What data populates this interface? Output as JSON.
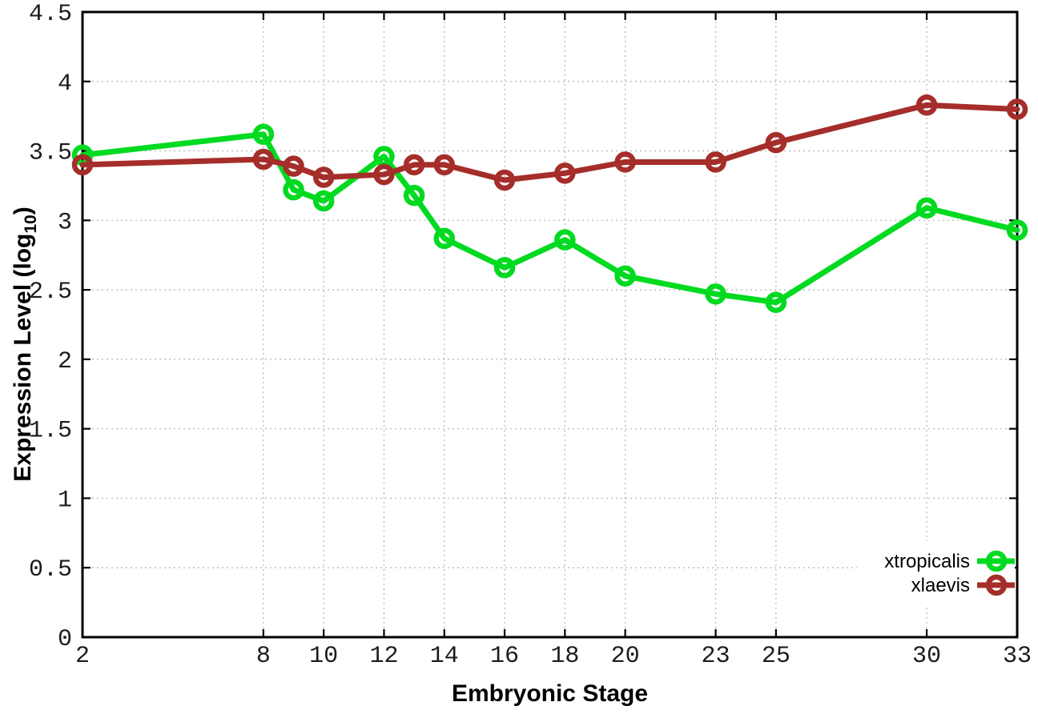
{
  "figure": {
    "background": "#ffffff"
  },
  "chart_data": {
    "type": "line",
    "title": "",
    "xlabel": "Embryonic Stage",
    "ylabel": "Expression Level (log10)",
    "ylabel_parts": {
      "main": "Expression Level (log",
      "sub": "10",
      "end": ")"
    },
    "xlim": [
      2,
      33
    ],
    "ylim": [
      0,
      4.5
    ],
    "grid": true,
    "legend_position": "bottom-right",
    "marker": "open-circle",
    "x": [
      2,
      8,
      9,
      10,
      12,
      13,
      14,
      16,
      18,
      20,
      23,
      25,
      30,
      33
    ],
    "xticks": [
      2,
      8,
      10,
      12,
      14,
      16,
      18,
      20,
      23,
      25,
      30,
      33
    ],
    "yticks": [
      0,
      0.5,
      1,
      1.5,
      2,
      2.5,
      3,
      3.5,
      4,
      4.5
    ],
    "series": [
      {
        "name": "xtropicalis",
        "color": "#00da20",
        "values": [
          3.47,
          3.62,
          3.22,
          3.14,
          3.46,
          3.18,
          2.87,
          2.66,
          2.86,
          2.6,
          2.47,
          2.41,
          3.09,
          2.93
        ]
      },
      {
        "name": "xlaevis",
        "color": "#a52e2a",
        "values": [
          3.4,
          3.44,
          3.39,
          3.31,
          3.33,
          3.4,
          3.4,
          3.29,
          3.34,
          3.42,
          3.42,
          3.56,
          3.83,
          3.8
        ]
      }
    ],
    "axis_color": "#000000",
    "grid_color": "#b3b3b3"
  }
}
